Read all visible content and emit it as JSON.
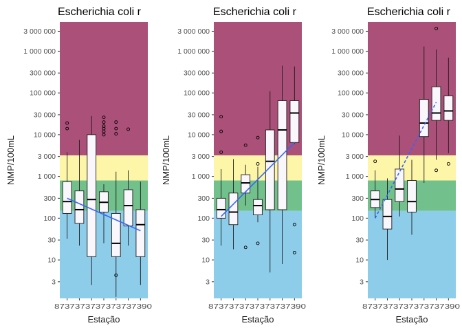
{
  "figure": {
    "zone_colors": {
      "high": "#ab5078",
      "moderate": "#fdf5a7",
      "good": "#72c18c",
      "excellent": "#8ecde9"
    },
    "zone_breaks": [
      150,
      800,
      3200
    ],
    "trend_color": "#3366ff",
    "box_fill": "#f9f6fc",
    "outlier_fill": "none"
  },
  "chart_data": [
    {
      "type": "box",
      "title": "Escherichia coli r",
      "xlabel": "Estação",
      "ylabel": "NMP/100mL",
      "yscale": "log",
      "ylim": [
        1.2,
        5000000
      ],
      "yticks": [
        3,
        10,
        30,
        100,
        300,
        1000,
        3000,
        10000,
        30000,
        100000,
        300000,
        1000000,
        3000000
      ],
      "ytick_labels": [
        "3",
        "10",
        "30",
        "100",
        "300",
        "1 000",
        "3 000",
        "10 000",
        "30 000",
        "100 000",
        "300 000",
        "1 000 000",
        "3 000 000"
      ],
      "categories": [
        "87350",
        "87360",
        "87370",
        "87380",
        "87390",
        "87400",
        "87410"
      ],
      "xtick_text": "8737373737373737390",
      "boxes": [
        {
          "min": 32,
          "q1": 130,
          "median": 250,
          "q3": 750,
          "max": 3800,
          "outliers": [
            14000,
            19000
          ]
        },
        {
          "min": 22,
          "q1": 75,
          "median": 160,
          "q3": 450,
          "max": 7500,
          "outliers": []
        },
        {
          "min": 2.5,
          "q1": 12,
          "median": 280,
          "q3": 10000,
          "max": 28000,
          "outliers": []
        },
        {
          "min": 25,
          "q1": 140,
          "median": 240,
          "q3": 430,
          "max": 650,
          "outliers": [
            10000,
            12000,
            14000,
            16000,
            20000,
            26000
          ]
        },
        {
          "min": 1.3,
          "q1": 12,
          "median": 25,
          "q3": 130,
          "max": 1300,
          "outliers": [
            4.3,
            10500,
            14000,
            20000
          ]
        },
        {
          "min": 22,
          "q1": 65,
          "median": 200,
          "q3": 480,
          "max": 1400,
          "outliers": [
            13500
          ]
        },
        {
          "min": 2.5,
          "q1": 12,
          "median": 70,
          "q3": 160,
          "max": 750,
          "outliers": []
        }
      ],
      "trend": {
        "from": [
          1,
          300
        ],
        "to": [
          7,
          50
        ],
        "dashed": false
      }
    },
    {
      "type": "box",
      "title": "Escherichia coli r",
      "xlabel": "Estação",
      "ylabel": "NMP/100mL",
      "yscale": "log",
      "ylim": [
        1.2,
        5000000
      ],
      "yticks": [
        3,
        10,
        30,
        100,
        300,
        1000,
        3000,
        10000,
        30000,
        100000,
        300000,
        1000000,
        3000000
      ],
      "ytick_labels": [
        "3",
        "10",
        "30",
        "100",
        "300",
        "1 000",
        "3 000",
        "10 000",
        "30 000",
        "100 000",
        "300 000",
        "1 000 000",
        "3 000 000"
      ],
      "categories": [
        "87350",
        "87360",
        "87370",
        "87380",
        "87390",
        "87400",
        "87410"
      ],
      "xtick_text": "8737373737373737390",
      "boxes": [
        {
          "min": 22,
          "q1": 100,
          "median": 160,
          "q3": 300,
          "max": 1500,
          "outliers": [
            3800,
            12000,
            27000
          ]
        },
        {
          "min": 18,
          "q1": 70,
          "median": 140,
          "q3": 400,
          "max": 2600,
          "outliers": []
        },
        {
          "min": 200,
          "q1": 400,
          "median": 700,
          "q3": 1100,
          "max": 1900,
          "outliers": [
            20,
            5600
          ]
        },
        {
          "min": 80,
          "q1": 120,
          "median": 200,
          "q3": 280,
          "max": 1700,
          "outliers": [
            25,
            2000,
            8500
          ]
        },
        {
          "min": 5,
          "q1": 160,
          "median": 2300,
          "q3": 13000,
          "max": 110000,
          "outliers": []
        },
        {
          "min": 8,
          "q1": 160,
          "median": 13000,
          "q3": 65000,
          "max": 450000,
          "outliers": []
        },
        {
          "min": 6000,
          "q1": 6500,
          "median": 33000,
          "q3": 65000,
          "max": 430000,
          "outliers": [
            15,
            70
          ]
        }
      ],
      "trend": {
        "from": [
          1,
          110
        ],
        "to": [
          7,
          6500
        ],
        "dashed": false
      }
    },
    {
      "type": "box",
      "title": "Escherichia coli r",
      "xlabel": "Estação",
      "ylabel": "NMP/100mL",
      "yscale": "log",
      "ylim": [
        1.2,
        5000000
      ],
      "yticks": [
        3,
        10,
        30,
        100,
        300,
        1000,
        3000,
        10000,
        30000,
        100000,
        300000,
        1000000,
        3000000
      ],
      "ytick_labels": [
        "3",
        "10",
        "30",
        "100",
        "300",
        "1 000",
        "3 000",
        "10 000",
        "30 000",
        "100 000",
        "300 000",
        "1 000 000",
        "3 000 000"
      ],
      "categories": [
        "87350",
        "87360",
        "87370",
        "87380",
        "87390",
        "87400",
        "87410"
      ],
      "xtick_text": "8737373737373737390",
      "boxes": [
        {
          "min": 100,
          "q1": 180,
          "median": 280,
          "q3": 450,
          "max": 1400,
          "outliers": [
            2300
          ]
        },
        {
          "min": 10,
          "q1": 55,
          "median": 110,
          "q3": 280,
          "max": 900,
          "outliers": []
        },
        {
          "min": 110,
          "q1": 250,
          "median": 500,
          "q3": 1500,
          "max": 9500,
          "outliers": []
        },
        {
          "min": 40,
          "q1": 140,
          "median": 250,
          "q3": 800,
          "max": 2500,
          "outliers": []
        },
        {
          "min": 700,
          "q1": 9000,
          "median": 19000,
          "q3": 70000,
          "max": 1300000,
          "outliers": []
        },
        {
          "min": 2500,
          "q1": 22000,
          "median": 33000,
          "q3": 140000,
          "max": 1100000,
          "outliers": [
            1400,
            3500000
          ]
        },
        {
          "min": 3600,
          "q1": 22000,
          "median": 37000,
          "q3": 85000,
          "max": 700000,
          "outliers": [
            2000
          ]
        }
      ],
      "trend": {
        "from": [
          1,
          100
        ],
        "to": [
          6,
          60000
        ],
        "dashed": true
      }
    }
  ]
}
